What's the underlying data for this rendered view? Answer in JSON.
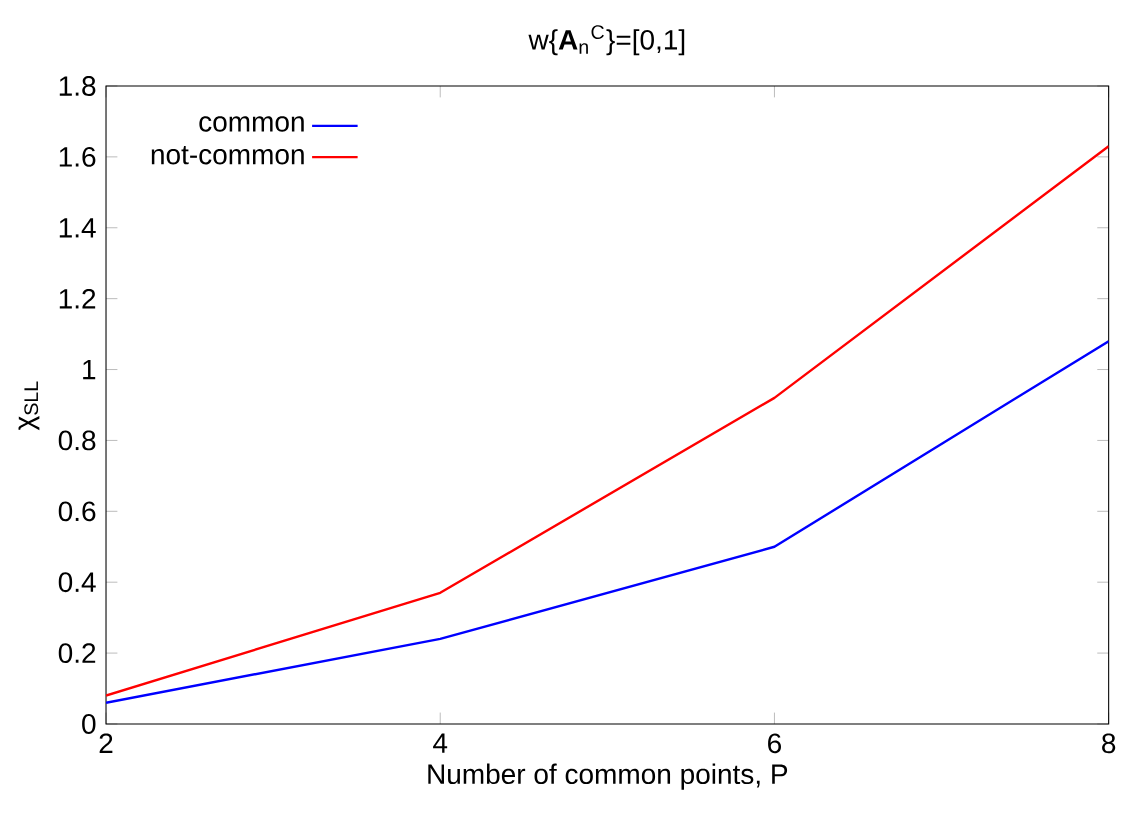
{
  "chart_data": {
    "type": "line",
    "title": "w{**A**$_{n}$$^{C}$}=[0,1]",
    "xlabel": "Number of common points, P",
    "ylabel": "χ$_{SLL}$",
    "x": [
      2,
      4,
      6,
      8
    ],
    "series": [
      {
        "name": "common",
        "color": "#0000ff",
        "values": [
          0.06,
          0.24,
          0.5,
          1.08
        ]
      },
      {
        "name": "not-common",
        "color": "#ff0000",
        "values": [
          0.08,
          0.37,
          0.92,
          1.63
        ]
      }
    ],
    "xlim": [
      2,
      8
    ],
    "ylim": [
      0,
      1.8
    ],
    "xticks": [
      2,
      4,
      6,
      8
    ],
    "yticks": [
      0,
      0.2,
      0.4,
      0.6,
      0.8,
      1,
      1.2,
      1.4,
      1.6,
      1.8
    ],
    "legend": "top left",
    "grid": false,
    "marker": "none",
    "line_style": "solid"
  }
}
